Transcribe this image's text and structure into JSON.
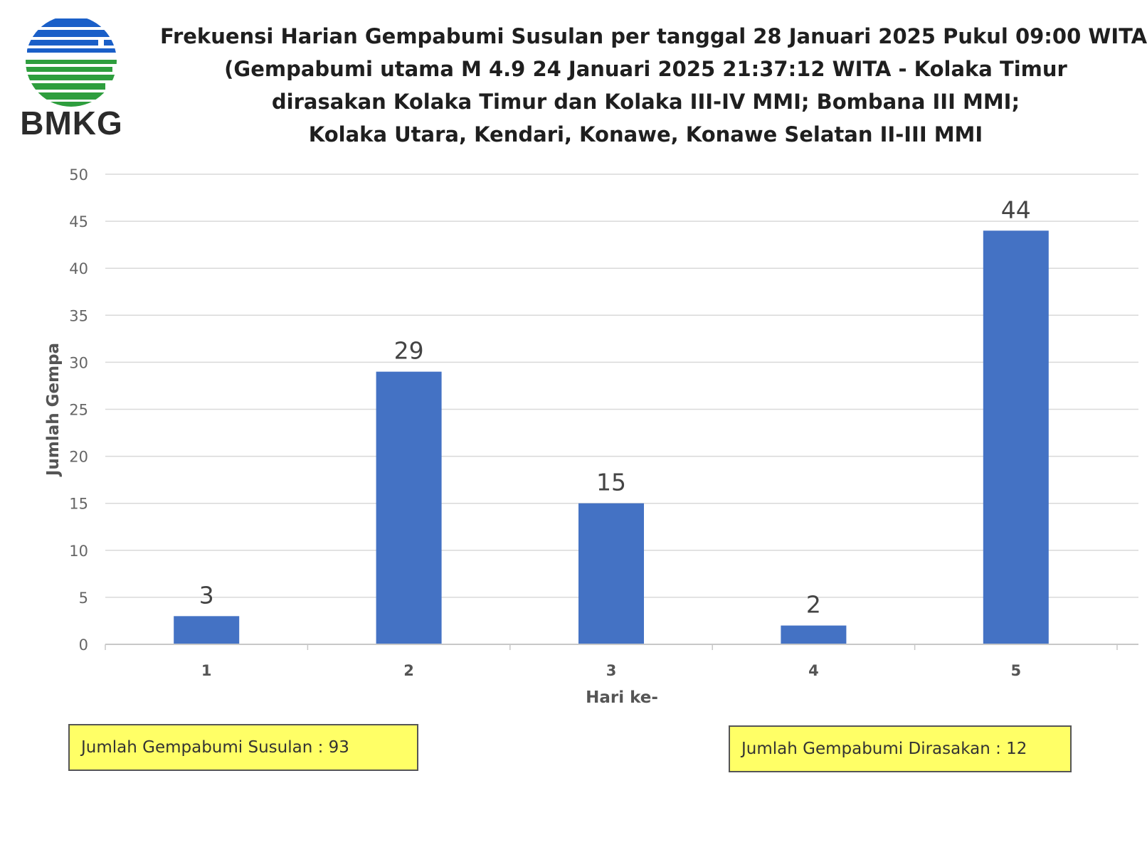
{
  "logo": {
    "text": "BMKG",
    "colors": {
      "blue": "#1a5fc8",
      "green": "#2e9e3e"
    }
  },
  "title_lines": [
    "Frekuensi Harian Gempabumi Susulan per tanggal 28 Januari 2025 Pukul 09:00 WITA",
    "(Gempabumi utama M 4.9 24 Januari 2025 21:37:12 WITA - Kolaka Timur",
    "dirasakan Kolaka Timur dan Kolaka III-IV MMI; Bombana III MMI;",
    "Kolaka Utara, Kendari, Konawe, Konawe Selatan II-III MMI"
  ],
  "chart_data": {
    "type": "bar",
    "categories": [
      "1",
      "2",
      "3",
      "4",
      "5"
    ],
    "values": [
      3,
      29,
      15,
      2,
      44
    ],
    "xlabel": "Hari ke-",
    "ylabel": "Jumlah Gempa",
    "ylim": [
      0,
      50
    ],
    "yticks": [
      0,
      5,
      10,
      15,
      20,
      25,
      30,
      35,
      40,
      45,
      50
    ],
    "grid": true,
    "data_labels": true,
    "bar_color": "#4472c4"
  },
  "info_boxes": {
    "susulan": "Jumlah Gempabumi Susulan : 93",
    "dirasakan": "Jumlah Gempabumi Dirasakan : 12"
  }
}
